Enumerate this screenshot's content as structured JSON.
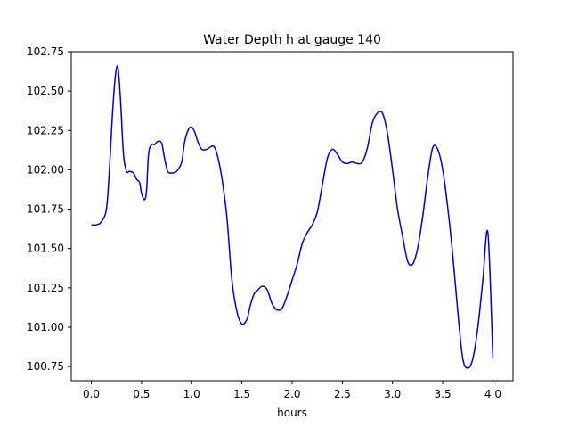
{
  "chart_data": {
    "type": "line",
    "title": "Water Depth h at gauge 140",
    "xlabel": "hours",
    "ylabel": "",
    "xlim": [
      -0.2,
      4.2
    ],
    "ylim": [
      100.66,
      102.75
    ],
    "xticks": [
      0.0,
      0.5,
      1.0,
      1.5,
      2.0,
      2.5,
      3.0,
      3.5,
      4.0
    ],
    "xtick_labels": [
      "0.0",
      "0.5",
      "1.0",
      "1.5",
      "2.0",
      "2.5",
      "3.0",
      "3.5",
      "4.0"
    ],
    "yticks": [
      100.75,
      101.0,
      101.25,
      101.5,
      101.75,
      102.0,
      102.25,
      102.5,
      102.75
    ],
    "ytick_labels": [
      "100.75",
      "101.00",
      "101.25",
      "101.50",
      "101.75",
      "102.00",
      "102.25",
      "102.50",
      "102.75"
    ],
    "grid": false,
    "series": [
      {
        "color": "#0000cc",
        "x": [
          0.0,
          0.05,
          0.1,
          0.15,
          0.18,
          0.21,
          0.24,
          0.265,
          0.29,
          0.32,
          0.35,
          0.38,
          0.42,
          0.45,
          0.48,
          0.5,
          0.53,
          0.55,
          0.57,
          0.6,
          0.63,
          0.66,
          0.7,
          0.73,
          0.76,
          0.8,
          0.85,
          0.9,
          0.93,
          0.97,
          1.0,
          1.03,
          1.06,
          1.1,
          1.15,
          1.2,
          1.23,
          1.26,
          1.3,
          1.35,
          1.4,
          1.45,
          1.5,
          1.55,
          1.58,
          1.62,
          1.65,
          1.7,
          1.75,
          1.8,
          1.85,
          1.9,
          1.95,
          2.0,
          2.05,
          2.1,
          2.15,
          2.2,
          2.25,
          2.3,
          2.35,
          2.4,
          2.45,
          2.5,
          2.55,
          2.6,
          2.65,
          2.7,
          2.75,
          2.8,
          2.85,
          2.9,
          2.95,
          3.0,
          3.05,
          3.1,
          3.15,
          3.2,
          3.25,
          3.3,
          3.35,
          3.4,
          3.45,
          3.5,
          3.55,
          3.6,
          3.65,
          3.7,
          3.75,
          3.8,
          3.85,
          3.9,
          3.95,
          4.0
        ],
        "values": [
          101.65,
          101.65,
          101.67,
          101.75,
          102.0,
          102.35,
          102.6,
          102.65,
          102.45,
          102.1,
          101.99,
          101.99,
          101.98,
          101.94,
          101.92,
          101.85,
          101.81,
          101.87,
          102.1,
          102.16,
          102.16,
          102.18,
          102.17,
          102.07,
          101.99,
          101.98,
          101.99,
          102.05,
          102.18,
          102.26,
          102.27,
          102.24,
          102.18,
          102.13,
          102.13,
          102.15,
          102.14,
          102.08,
          101.95,
          101.7,
          101.3,
          101.1,
          101.02,
          101.05,
          101.13,
          101.21,
          101.23,
          101.26,
          101.24,
          101.15,
          101.11,
          101.12,
          101.2,
          101.3,
          101.4,
          101.53,
          101.6,
          101.65,
          101.73,
          101.9,
          102.07,
          102.13,
          102.1,
          102.05,
          102.04,
          102.05,
          102.04,
          102.05,
          102.14,
          102.3,
          102.36,
          102.36,
          102.23,
          102.0,
          101.75,
          101.58,
          101.42,
          101.4,
          101.5,
          101.7,
          101.95,
          102.14,
          102.13,
          102.0,
          101.76,
          101.46,
          101.1,
          100.8,
          100.74,
          100.8,
          101.0,
          101.3,
          101.6,
          100.8
        ]
      }
    ]
  }
}
